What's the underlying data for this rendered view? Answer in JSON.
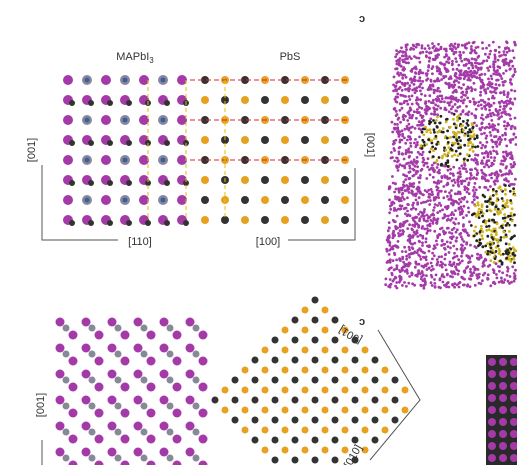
{
  "panel_c_top": "c",
  "panel_c_bottom": "c",
  "top": {
    "left_label": {
      "base": "MAPbI",
      "sub": "3"
    },
    "right_label": "PbS",
    "axis_left_vertical": "[001]",
    "axis_left_horizontal": "[110]",
    "axis_right_horizontal": "[100]",
    "axis_right_vertical": "[001]"
  },
  "bottom": {
    "axis_left_vertical": "[001]",
    "axis_right_upper": "[001]",
    "axis_right_lower": "[010]"
  }
}
